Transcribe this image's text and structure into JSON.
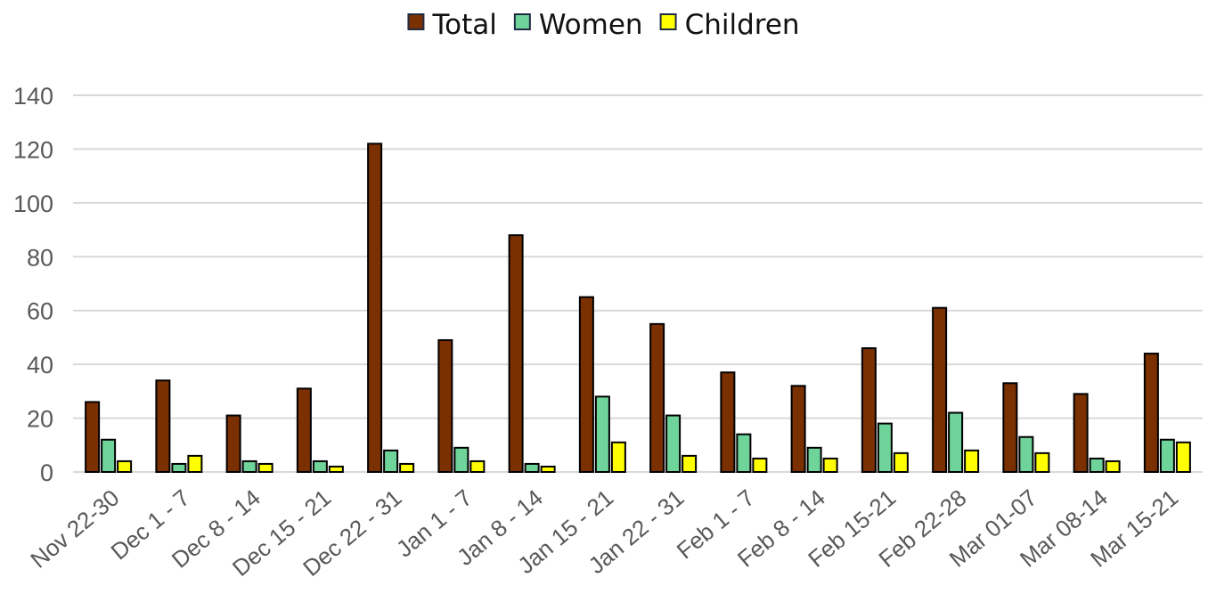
{
  "chart_data": {
    "type": "bar",
    "title": "",
    "xlabel": "",
    "ylabel": "",
    "ylim": [
      0,
      140
    ],
    "yticks": [
      0,
      20,
      40,
      60,
      80,
      100,
      120,
      140
    ],
    "grid": "horizontal",
    "legend_position": "top-center",
    "categories": [
      "Nov 22-30",
      "Dec 1 - 7",
      "Dec 8 - 14",
      "Dec 15 - 21",
      "Dec 22 - 31",
      "Jan 1 - 7",
      "Jan 8 - 14",
      "Jan 15 - 21",
      "Jan 22 - 31",
      "Feb 1 - 7",
      "Feb 8 - 14",
      "Feb 15-21",
      "Feb 22-28",
      "Mar 01-07",
      "Mar 08-14",
      "Mar 15-21"
    ],
    "series": [
      {
        "name": "Total",
        "color": "#7a3000",
        "values": [
          26,
          34,
          21,
          31,
          122,
          49,
          88,
          65,
          55,
          37,
          32,
          46,
          61,
          33,
          29,
          44
        ]
      },
      {
        "name": "Women",
        "color": "#6fd49a",
        "values": [
          12,
          3,
          4,
          4,
          8,
          9,
          3,
          28,
          21,
          14,
          9,
          18,
          22,
          13,
          5,
          12
        ]
      },
      {
        "name": "Children",
        "color": "#ffff00",
        "values": [
          4,
          6,
          3,
          2,
          3,
          4,
          2,
          11,
          6,
          5,
          5,
          7,
          8,
          7,
          4,
          11
        ]
      }
    ]
  }
}
